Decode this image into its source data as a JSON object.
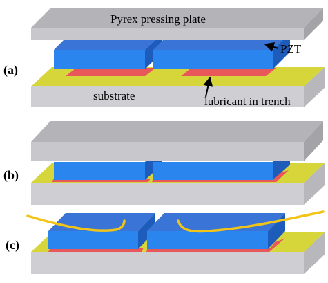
{
  "panels": [
    {
      "label": "(a)",
      "plate_label": "Pyrex pressing plate",
      "pzt_label": "PZT",
      "substrate_label": "substrate",
      "lubricant_label": "lubricant in trench"
    },
    {
      "label": "(b)"
    },
    {
      "label": "(c)"
    }
  ]
}
